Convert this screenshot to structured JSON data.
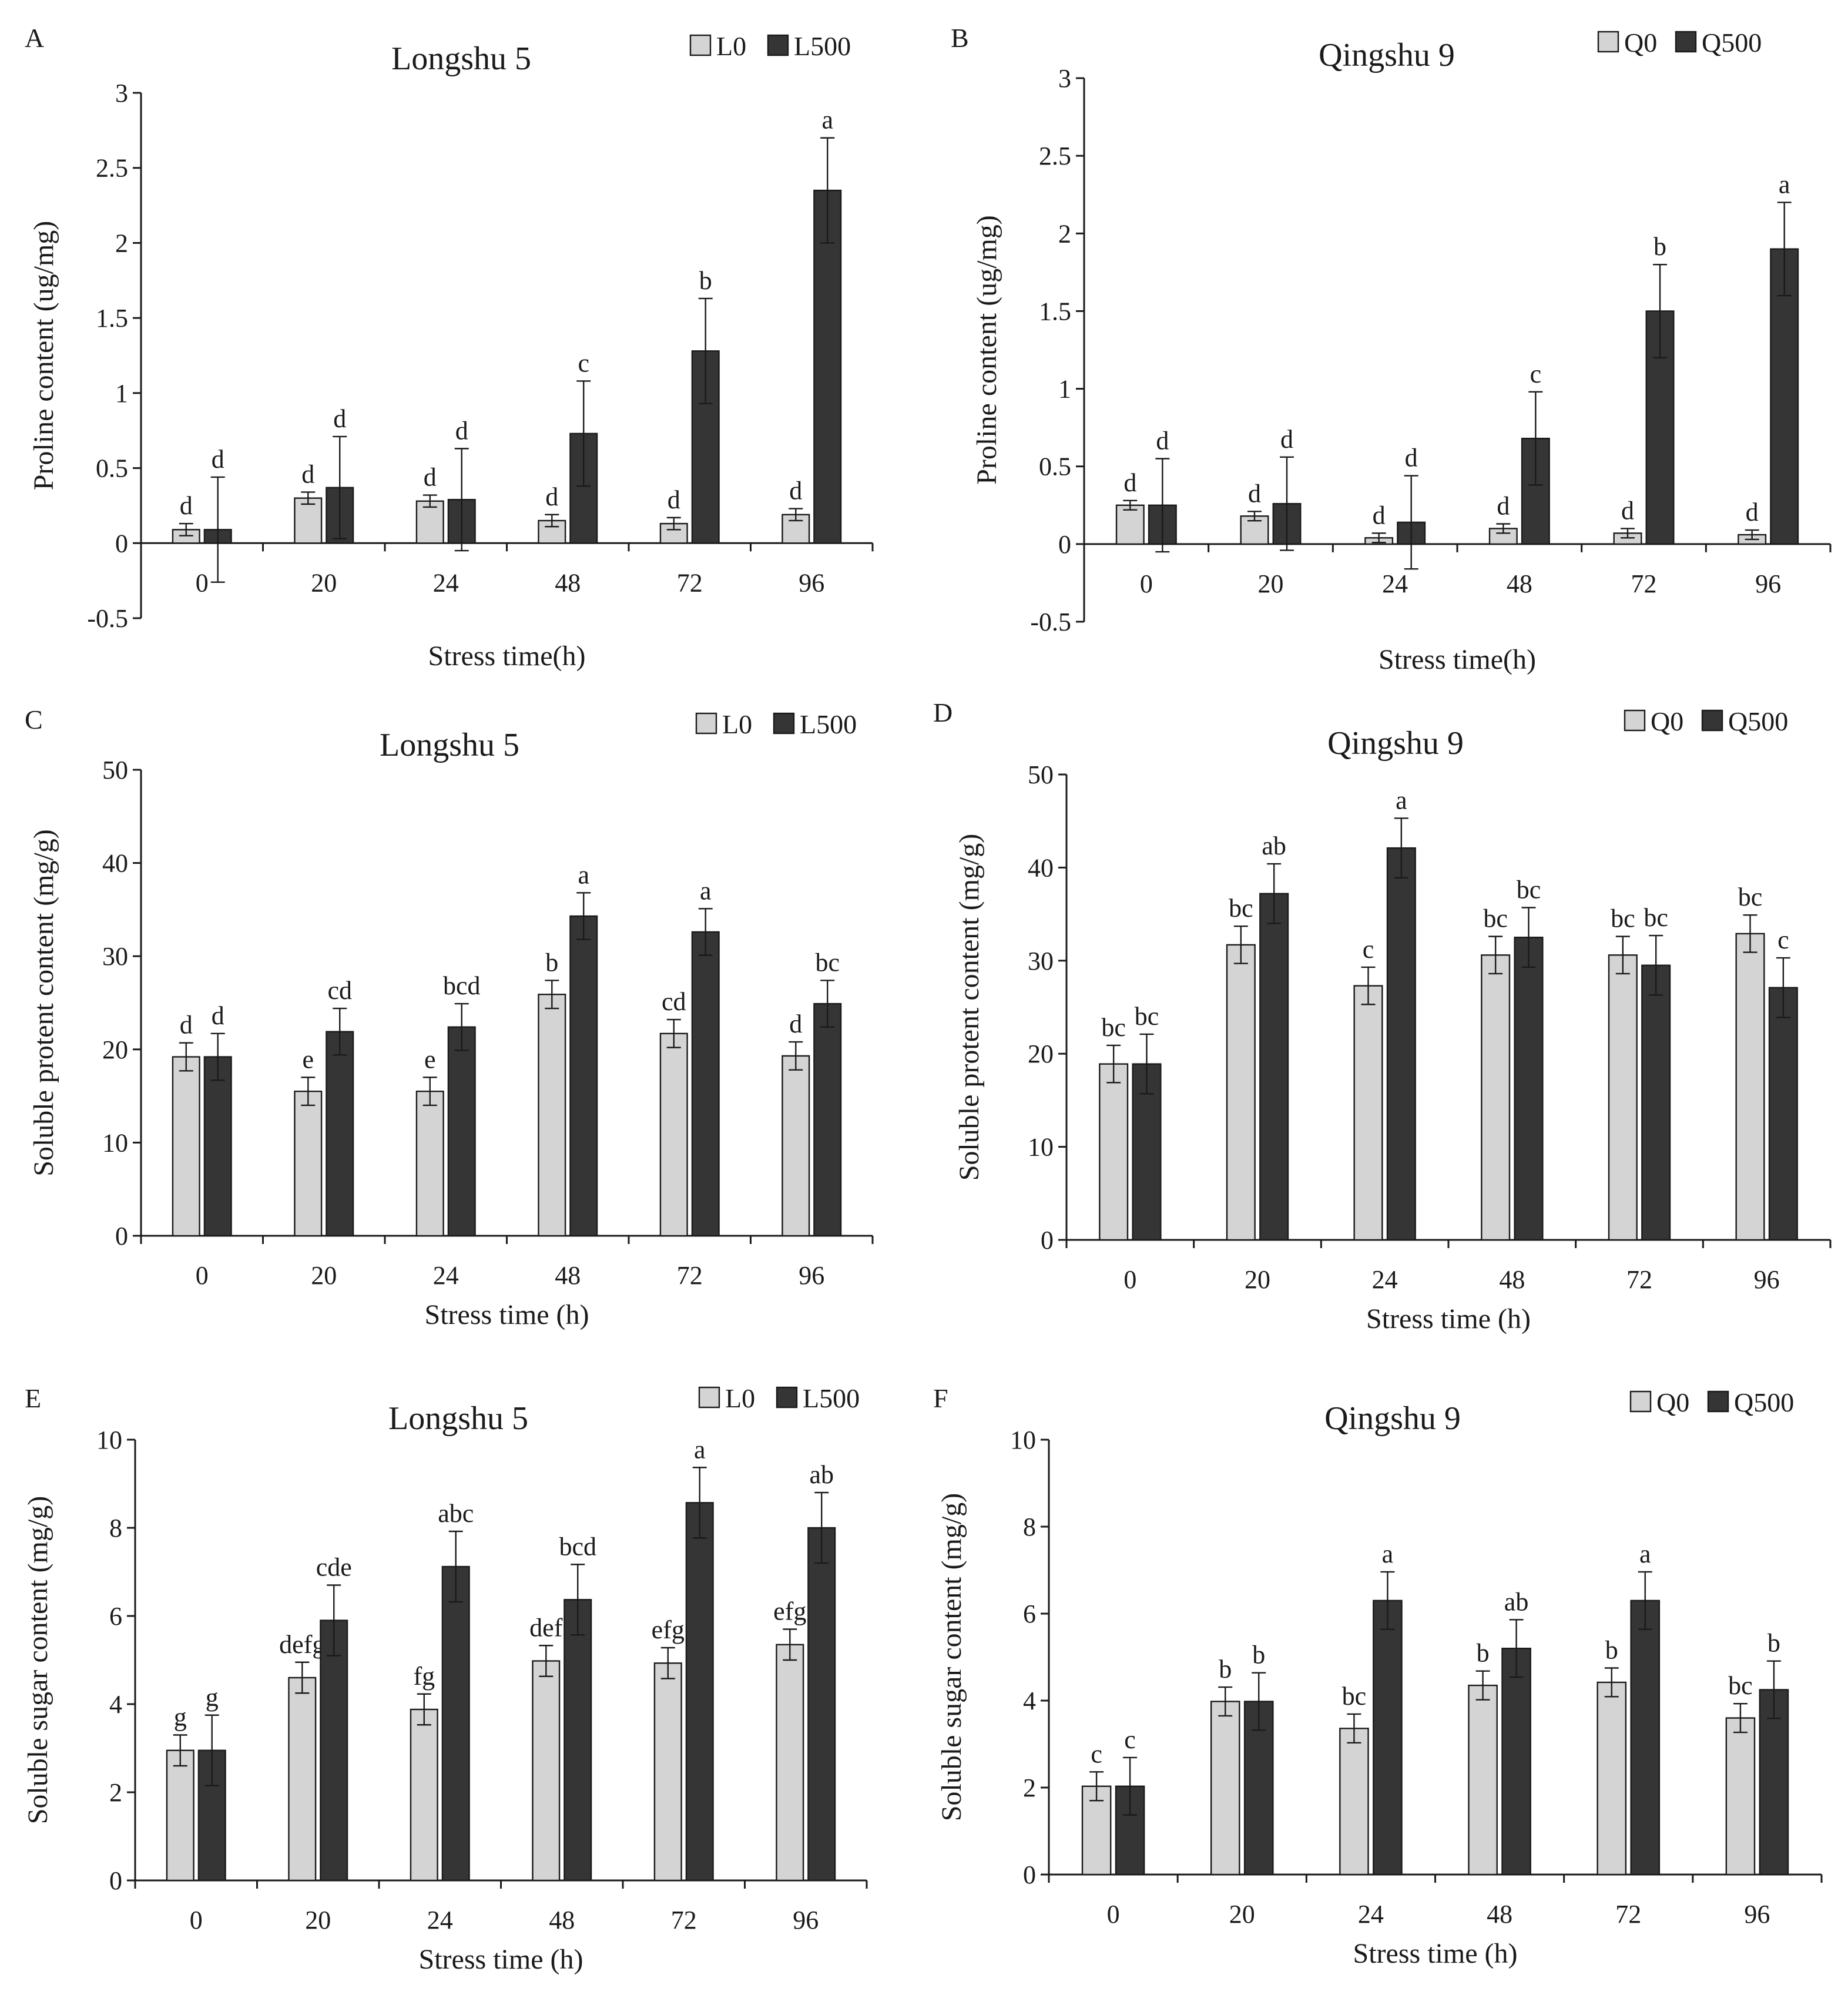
{
  "colors": {
    "control": "#d4d4d4",
    "treated": "#353535",
    "ink": "#1a1a1a"
  },
  "chart_data": [
    {
      "panel": "A",
      "type": "bar",
      "title": "Longshu 5",
      "xlabel": "Stress time(h)",
      "ylabel": "Proline content (ug/mg)",
      "ylim": [
        -0.5,
        3
      ],
      "yticks": [
        -0.5,
        0,
        0.5,
        1,
        1.5,
        2,
        2.5,
        3
      ],
      "ytick_labels": [
        "-0.5",
        "0",
        "0.5",
        "1",
        "1.5",
        "2",
        "2.5",
        "3"
      ],
      "x_at_zero": true,
      "legend_position": "top-right",
      "categories": [
        "0",
        "20",
        "24",
        "48",
        "72",
        "96"
      ],
      "series": [
        {
          "name": "L0",
          "values": [
            0.09,
            0.3,
            0.28,
            0.15,
            0.13,
            0.19
          ],
          "errors": [
            0.04,
            0.04,
            0.04,
            0.04,
            0.04,
            0.04
          ],
          "letters": [
            "d",
            "d",
            "d",
            "d",
            "d",
            "d"
          ]
        },
        {
          "name": "L500",
          "values": [
            0.09,
            0.37,
            0.29,
            0.73,
            1.28,
            2.35
          ],
          "errors": [
            0.35,
            0.34,
            0.34,
            0.35,
            0.35,
            0.35
          ],
          "letters": [
            "d",
            "d",
            "d",
            "c",
            "b",
            "a"
          ]
        }
      ]
    },
    {
      "panel": "B",
      "type": "bar",
      "title": "Qingshu 9",
      "xlabel": "Stress time(h)",
      "ylabel": "Proline content (ug/mg)",
      "ylim": [
        -0.5,
        3
      ],
      "yticks": [
        -0.5,
        0,
        0.5,
        1,
        1.5,
        2,
        2.5,
        3
      ],
      "ytick_labels": [
        "-0.5",
        "0",
        "0.5",
        "1",
        "1.5",
        "2",
        "2.5",
        "3"
      ],
      "x_at_zero": true,
      "legend_position": "top-right",
      "categories": [
        "0",
        "20",
        "24",
        "48",
        "72",
        "96"
      ],
      "series": [
        {
          "name": "Q0",
          "values": [
            0.25,
            0.18,
            0.04,
            0.1,
            0.07,
            0.06
          ],
          "errors": [
            0.03,
            0.03,
            0.03,
            0.03,
            0.03,
            0.03
          ],
          "letters": [
            "d",
            "d",
            "d",
            "d",
            "d",
            "d"
          ]
        },
        {
          "name": "Q500",
          "values": [
            0.25,
            0.26,
            0.14,
            0.68,
            1.5,
            1.9
          ],
          "errors": [
            0.3,
            0.3,
            0.3,
            0.3,
            0.3,
            0.3
          ],
          "letters": [
            "d",
            "d",
            "d",
            "c",
            "b",
            "a"
          ]
        }
      ]
    },
    {
      "panel": "C",
      "type": "bar",
      "title": "Longshu 5",
      "xlabel": "Stress time (h)",
      "ylabel": "Soluble protent content (mg/g)",
      "ylim": [
        0,
        50
      ],
      "yticks": [
        0,
        10,
        20,
        30,
        40,
        50
      ],
      "ytick_labels": [
        "0",
        "10",
        "20",
        "30",
        "40",
        "50"
      ],
      "x_at_zero": true,
      "legend_position": "top-right",
      "categories": [
        "0",
        "20",
        "24",
        "48",
        "72",
        "96"
      ],
      "series": [
        {
          "name": "L0",
          "values": [
            19.2,
            15.5,
            15.5,
            25.9,
            21.7,
            19.3
          ],
          "errors": [
            1.5,
            1.5,
            1.5,
            1.5,
            1.5,
            1.5
          ],
          "letters": [
            "d",
            "e",
            "e",
            "b",
            "cd",
            "d"
          ]
        },
        {
          "name": "L500",
          "values": [
            19.2,
            21.9,
            22.4,
            34.3,
            32.6,
            24.9
          ],
          "errors": [
            2.5,
            2.5,
            2.5,
            2.5,
            2.5,
            2.5
          ],
          "letters": [
            "d",
            "cd",
            "bcd",
            "a",
            "a",
            "bc"
          ]
        }
      ]
    },
    {
      "panel": "D",
      "type": "bar",
      "title": "Qingshu 9",
      "xlabel": "Stress time (h)",
      "ylabel": "Soluble protent content (mg/g)",
      "ylim": [
        0,
        50
      ],
      "yticks": [
        0,
        10,
        20,
        30,
        40,
        50
      ],
      "ytick_labels": [
        "0",
        "10",
        "20",
        "30",
        "40",
        "50"
      ],
      "x_at_zero": true,
      "legend_position": "top-right",
      "categories": [
        "0",
        "20",
        "24",
        "48",
        "72",
        "96"
      ],
      "series": [
        {
          "name": "Q0",
          "values": [
            18.9,
            31.7,
            27.3,
            30.6,
            30.6,
            32.9
          ],
          "errors": [
            2.0,
            2.0,
            2.0,
            2.0,
            2.0,
            2.0
          ],
          "letters": [
            "bc",
            "bc",
            "c",
            "bc",
            "bc",
            "bc"
          ]
        },
        {
          "name": "Q500",
          "values": [
            18.9,
            37.2,
            42.1,
            32.5,
            29.5,
            27.1
          ],
          "errors": [
            3.2,
            3.2,
            3.2,
            3.2,
            3.2,
            3.2
          ],
          "letters": [
            "bc",
            "ab",
            "a",
            "bc",
            "bc",
            "c"
          ]
        }
      ]
    },
    {
      "panel": "E",
      "type": "bar",
      "title": "Longshu 5",
      "xlabel": "Stress time (h)",
      "ylabel": "Soluble sugar content (mg/g)",
      "ylim": [
        0,
        10
      ],
      "yticks": [
        0,
        2,
        4,
        6,
        8,
        10
      ],
      "ytick_labels": [
        "0",
        "2",
        "4",
        "6",
        "8",
        "10"
      ],
      "x_at_zero": true,
      "legend_position": "top-right",
      "categories": [
        "0",
        "20",
        "24",
        "48",
        "72",
        "96"
      ],
      "series": [
        {
          "name": "L0",
          "values": [
            2.95,
            4.6,
            3.88,
            4.98,
            4.93,
            5.35
          ],
          "errors": [
            0.35,
            0.35,
            0.35,
            0.35,
            0.35,
            0.35
          ],
          "letters": [
            "g",
            "defg",
            "fg",
            "def",
            "efg",
            "efg"
          ]
        },
        {
          "name": "L500",
          "values": [
            2.95,
            5.9,
            7.12,
            6.37,
            8.57,
            8.0
          ],
          "errors": [
            0.8,
            0.8,
            0.8,
            0.8,
            0.8,
            0.8
          ],
          "letters": [
            "g",
            "cde",
            "abc",
            "bcd",
            "a",
            "ab"
          ]
        }
      ]
    },
    {
      "panel": "F",
      "type": "bar",
      "title": "Qingshu 9",
      "xlabel": "Stress time (h)",
      "ylabel": "Soluble sugar content (mg/g)",
      "ylim": [
        0,
        10
      ],
      "yticks": [
        0,
        2,
        4,
        6,
        8,
        10
      ],
      "ytick_labels": [
        "0",
        "2",
        "4",
        "6",
        "8",
        "10"
      ],
      "x_at_zero": true,
      "legend_position": "top-right",
      "categories": [
        "0",
        "20",
        "24",
        "48",
        "72",
        "96"
      ],
      "series": [
        {
          "name": "Q0",
          "values": [
            2.03,
            3.98,
            3.36,
            4.35,
            4.42,
            3.6
          ],
          "errors": [
            0.33,
            0.33,
            0.33,
            0.33,
            0.33,
            0.33
          ],
          "letters": [
            "c",
            "b",
            "bc",
            "b",
            "b",
            "bc"
          ]
        },
        {
          "name": "Q500",
          "values": [
            2.03,
            3.98,
            6.3,
            5.2,
            6.3,
            4.25
          ],
          "errors": [
            0.66,
            0.66,
            0.66,
            0.66,
            0.66,
            0.66
          ],
          "letters": [
            "c",
            "b",
            "a",
            "ab",
            "a",
            "b"
          ]
        }
      ]
    }
  ]
}
